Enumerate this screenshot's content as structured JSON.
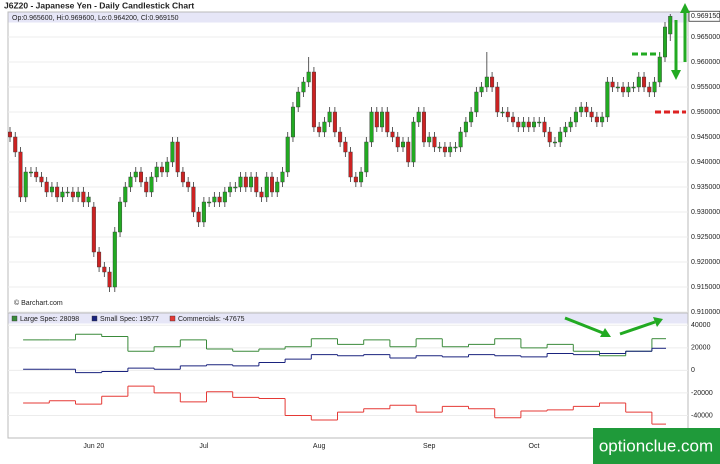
{
  "chart_data": [
    {
      "type": "candlestick",
      "title": "J6Z20 - Japanese Yen - Daily Candlestick Chart",
      "info": "Op:0.965600, Hi:0.969600, Lo:0.964200, Cl:0.969150",
      "annotation": "© Barchart.com",
      "last_label": "0.969150",
      "up_color": "#22aa22",
      "down_color": "#cc2222",
      "grid": true,
      "categories": [
        null,
        null,
        null,
        null,
        null,
        null,
        null,
        null,
        null,
        null,
        null,
        null,
        null,
        null,
        null,
        null,
        "Jun 20",
        null,
        null,
        null,
        null,
        null,
        null,
        null,
        null,
        null,
        null,
        null,
        null,
        null,
        null,
        null,
        null,
        null,
        null,
        null,
        null,
        "Jul",
        null,
        null,
        null,
        null,
        null,
        null,
        null,
        null,
        null,
        null,
        null,
        null,
        null,
        null,
        null,
        null,
        null,
        null,
        null,
        null,
        null,
        "Aug",
        null,
        null,
        null,
        null,
        null,
        null,
        null,
        null,
        null,
        null,
        null,
        null,
        null,
        null,
        null,
        null,
        null,
        null,
        null,
        null,
        "Sep",
        null,
        null,
        null,
        null,
        null,
        null,
        null,
        null,
        null,
        null,
        null,
        null,
        null,
        null,
        null,
        null,
        null,
        null,
        null,
        "Oct",
        null,
        null,
        null,
        null,
        null,
        null,
        null,
        null,
        null,
        null,
        null,
        null,
        null,
        null,
        null,
        null,
        null,
        null,
        null,
        null,
        null,
        null,
        null,
        null,
        null,
        null
      ],
      "open": [
        0.946,
        0.945,
        0.942,
        0.933,
        0.938,
        0.938,
        0.937,
        0.936,
        0.934,
        0.935,
        0.933,
        0.934,
        0.934,
        0.933,
        0.934,
        0.932,
        0.931,
        0.922,
        0.919,
        0.918,
        0.915,
        0.926,
        0.932,
        0.935,
        0.937,
        0.938,
        0.936,
        0.934,
        0.937,
        0.939,
        0.938,
        0.94,
        0.944,
        0.938,
        0.936,
        0.935,
        0.93,
        0.928,
        0.932,
        0.932,
        0.933,
        0.932,
        0.934,
        0.935,
        0.935,
        0.937,
        0.935,
        0.937,
        0.934,
        0.933,
        0.937,
        0.934,
        0.936,
        0.938,
        0.945,
        0.951,
        0.954,
        0.956,
        0.958,
        0.947,
        0.946,
        0.948,
        0.95,
        0.946,
        0.944,
        0.942,
        0.937,
        0.936,
        0.938,
        0.944,
        0.95,
        0.947,
        0.95,
        0.946,
        0.945,
        0.943,
        0.944,
        0.94,
        0.948,
        0.95,
        0.944,
        0.945,
        0.943,
        0.943,
        0.942,
        0.943,
        0.943,
        0.946,
        0.948,
        0.95,
        0.954,
        0.955,
        0.957,
        0.955,
        0.95,
        0.95,
        0.949,
        0.948,
        0.947,
        0.948,
        0.947,
        0.948,
        0.948,
        0.946,
        0.944,
        0.944,
        0.946,
        0.947,
        0.948,
        0.95,
        0.951,
        0.95,
        0.949,
        0.948,
        0.949,
        0.956,
        0.955,
        0.955,
        0.954,
        0.955,
        0.955,
        0.957,
        0.955,
        0.954,
        0.956,
        0.961,
        0.9656
      ],
      "high": [
        0.947,
        0.946,
        0.943,
        0.939,
        0.939,
        0.939,
        0.938,
        0.937,
        0.936,
        0.936,
        0.935,
        0.935,
        0.935,
        0.935,
        0.935,
        0.934,
        0.932,
        0.923,
        0.92,
        0.919,
        0.927,
        0.933,
        0.936,
        0.938,
        0.939,
        0.939,
        0.937,
        0.938,
        0.94,
        0.94,
        0.941,
        0.945,
        0.945,
        0.939,
        0.937,
        0.936,
        0.931,
        0.933,
        0.933,
        0.934,
        0.934,
        0.935,
        0.936,
        0.936,
        0.938,
        0.938,
        0.938,
        0.938,
        0.935,
        0.938,
        0.938,
        0.937,
        0.939,
        0.946,
        0.952,
        0.955,
        0.957,
        0.961,
        0.959,
        0.948,
        0.949,
        0.951,
        0.951,
        0.947,
        0.945,
        0.943,
        0.938,
        0.939,
        0.945,
        0.951,
        0.951,
        0.951,
        0.951,
        0.947,
        0.946,
        0.945,
        0.945,
        0.949,
        0.951,
        0.951,
        0.946,
        0.946,
        0.944,
        0.944,
        0.944,
        0.944,
        0.947,
        0.949,
        0.951,
        0.955,
        0.956,
        0.962,
        0.958,
        0.956,
        0.951,
        0.951,
        0.95,
        0.949,
        0.949,
        0.949,
        0.949,
        0.949,
        0.949,
        0.947,
        0.945,
        0.947,
        0.948,
        0.949,
        0.951,
        0.952,
        0.952,
        0.951,
        0.95,
        0.95,
        0.957,
        0.957,
        0.956,
        0.956,
        0.956,
        0.956,
        0.958,
        0.958,
        0.956,
        0.957,
        0.962,
        0.968,
        0.9696
      ],
      "low": [
        0.944,
        0.941,
        0.932,
        0.932,
        0.937,
        0.936,
        0.935,
        0.933,
        0.933,
        0.932,
        0.932,
        0.933,
        0.932,
        0.932,
        0.931,
        0.931,
        0.921,
        0.918,
        0.917,
        0.914,
        0.914,
        0.925,
        0.931,
        0.934,
        0.936,
        0.935,
        0.933,
        0.933,
        0.936,
        0.937,
        0.937,
        0.939,
        0.937,
        0.935,
        0.934,
        0.929,
        0.927,
        0.927,
        0.931,
        0.931,
        0.931,
        0.931,
        0.933,
        0.934,
        0.934,
        0.934,
        0.934,
        0.933,
        0.932,
        0.932,
        0.933,
        0.933,
        0.935,
        0.937,
        0.944,
        0.95,
        0.953,
        0.955,
        0.946,
        0.945,
        0.945,
        0.947,
        0.945,
        0.943,
        0.941,
        0.936,
        0.935,
        0.935,
        0.937,
        0.943,
        0.946,
        0.946,
        0.945,
        0.944,
        0.942,
        0.942,
        0.939,
        0.939,
        0.947,
        0.943,
        0.943,
        0.942,
        0.942,
        0.941,
        0.941,
        0.942,
        0.942,
        0.945,
        0.947,
        0.949,
        0.953,
        0.954,
        0.954,
        0.949,
        0.949,
        0.948,
        0.947,
        0.946,
        0.946,
        0.946,
        0.946,
        0.947,
        0.945,
        0.943,
        0.943,
        0.943,
        0.945,
        0.946,
        0.947,
        0.949,
        0.949,
        0.948,
        0.947,
        0.947,
        0.948,
        0.954,
        0.954,
        0.953,
        0.953,
        0.954,
        0.954,
        0.954,
        0.953,
        0.953,
        0.955,
        0.96,
        0.9642
      ],
      "close": [
        0.945,
        0.942,
        0.933,
        0.938,
        0.938,
        0.937,
        0.936,
        0.934,
        0.935,
        0.933,
        0.934,
        0.934,
        0.933,
        0.934,
        0.932,
        0.933,
        0.922,
        0.919,
        0.918,
        0.915,
        0.926,
        0.932,
        0.935,
        0.937,
        0.938,
        0.936,
        0.934,
        0.937,
        0.939,
        0.938,
        0.94,
        0.944,
        0.938,
        0.936,
        0.935,
        0.93,
        0.928,
        0.932,
        0.932,
        0.933,
        0.932,
        0.934,
        0.935,
        0.935,
        0.937,
        0.935,
        0.937,
        0.934,
        0.933,
        0.937,
        0.934,
        0.936,
        0.938,
        0.945,
        0.951,
        0.954,
        0.956,
        0.958,
        0.947,
        0.946,
        0.948,
        0.95,
        0.946,
        0.944,
        0.942,
        0.937,
        0.936,
        0.938,
        0.944,
        0.95,
        0.947,
        0.95,
        0.946,
        0.945,
        0.943,
        0.944,
        0.94,
        0.948,
        0.95,
        0.944,
        0.945,
        0.943,
        0.943,
        0.942,
        0.943,
        0.943,
        0.946,
        0.948,
        0.95,
        0.954,
        0.955,
        0.957,
        0.955,
        0.95,
        0.95,
        0.949,
        0.948,
        0.947,
        0.948,
        0.947,
        0.948,
        0.948,
        0.946,
        0.944,
        0.944,
        0.946,
        0.947,
        0.948,
        0.95,
        0.951,
        0.95,
        0.949,
        0.948,
        0.949,
        0.956,
        0.955,
        0.955,
        0.954,
        0.955,
        0.955,
        0.957,
        0.955,
        0.954,
        0.956,
        0.961,
        0.967,
        0.96915
      ],
      "ylim": [
        0.91,
        0.97
      ],
      "yticks": [
        {
          "value": 0.91,
          "label": "0.910000"
        },
        {
          "value": 0.915,
          "label": "0.915000"
        },
        {
          "value": 0.92,
          "label": "0.920000"
        },
        {
          "value": 0.925,
          "label": "0.925000"
        },
        {
          "value": 0.93,
          "label": "0.930000"
        },
        {
          "value": 0.935,
          "label": "0.935000"
        },
        {
          "value": 0.94,
          "label": "0.940000"
        },
        {
          "value": 0.945,
          "label": "0.945000"
        },
        {
          "value": 0.95,
          "label": "0.950000"
        },
        {
          "value": 0.955,
          "label": "0.955000"
        },
        {
          "value": 0.96,
          "label": "0.960000"
        },
        {
          "value": 0.965,
          "label": "0.965000"
        }
      ]
    },
    {
      "type": "line",
      "step": true,
      "grid": true,
      "ylim": [
        -60000,
        50000
      ],
      "yticks": [
        -40000,
        -20000,
        0,
        20000,
        40000
      ],
      "series": [
        {
          "name": "Large Spec: 28098",
          "color": "#3a8a3a",
          "values": [
            27000,
            27000,
            32000,
            30000,
            17000,
            21000,
            27000,
            19000,
            17000,
            19000,
            21000,
            28000,
            23000,
            27000,
            21000,
            28000,
            21000,
            23000,
            28000,
            20000,
            23000,
            17000,
            13000,
            17000,
            28098
          ]
        },
        {
          "name": "Small Spec: 19577",
          "color": "#1a237e",
          "values": [
            1000,
            1000,
            -2000,
            -1000,
            2000,
            1000,
            4000,
            5000,
            4000,
            7000,
            10000,
            14000,
            13000,
            14000,
            11000,
            13000,
            12000,
            14000,
            13000,
            12000,
            15000,
            14000,
            15000,
            17000,
            19577
          ]
        },
        {
          "name": "Commercials: -47675",
          "color": "#e53935",
          "values": [
            -29000,
            -27000,
            -30000,
            -23000,
            -14000,
            -20000,
            -28000,
            -19000,
            -24000,
            -25000,
            -40000,
            -44000,
            -37000,
            -34000,
            -31000,
            -37000,
            -32000,
            -34000,
            -42000,
            -36000,
            -35000,
            -32000,
            -29000,
            -37000,
            -47675
          ]
        }
      ]
    }
  ],
  "watermark": "optionclue.com"
}
